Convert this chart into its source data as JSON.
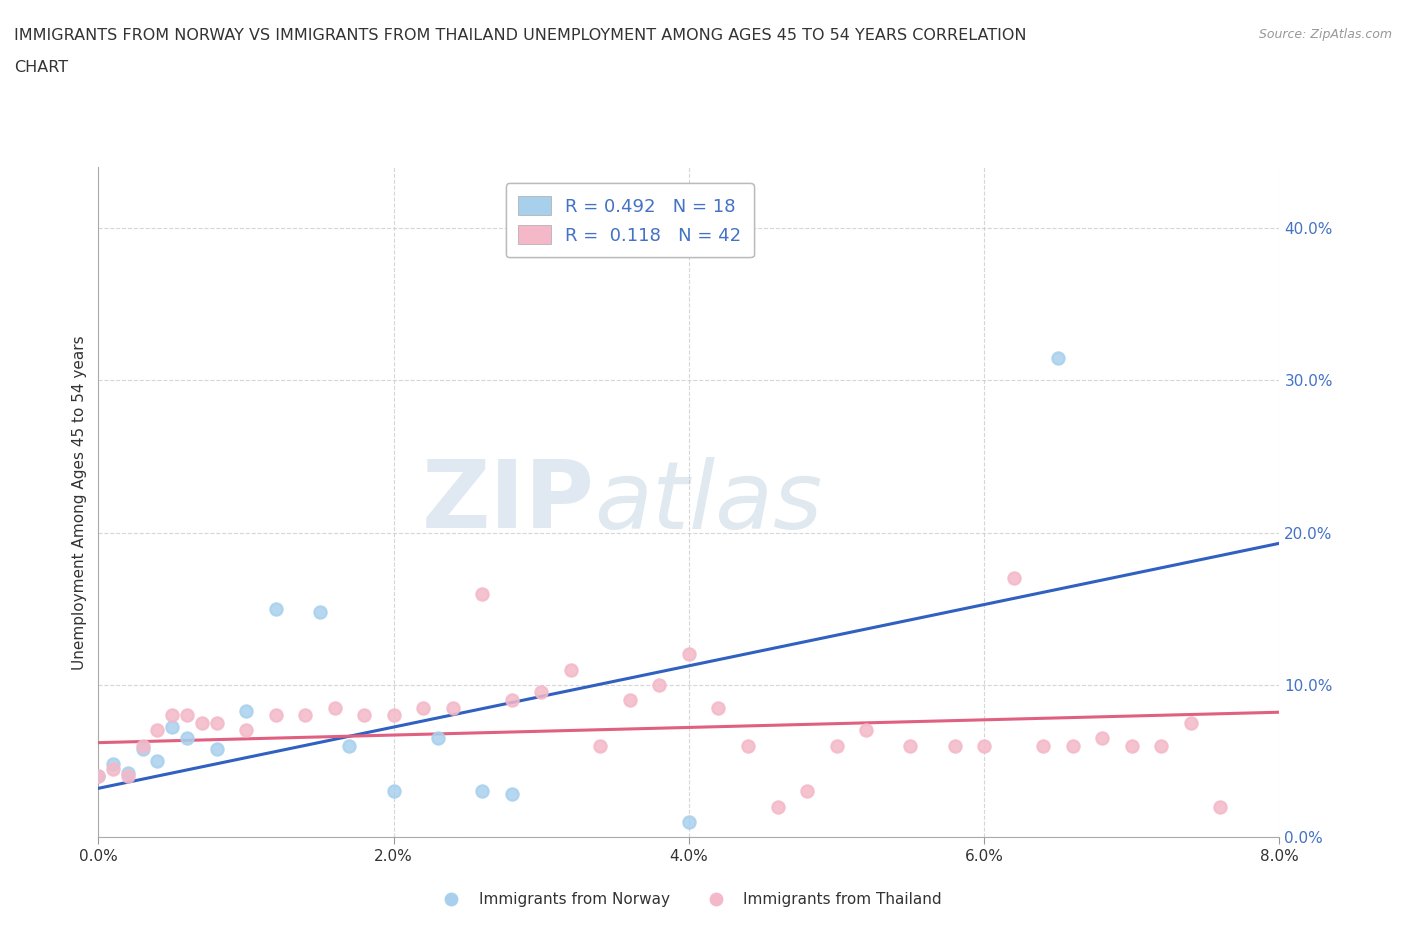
{
  "title_line1": "IMMIGRANTS FROM NORWAY VS IMMIGRANTS FROM THAILAND UNEMPLOYMENT AMONG AGES 45 TO 54 YEARS CORRELATION",
  "title_line2": "CHART",
  "source_text": "Source: ZipAtlas.com",
  "ylabel": "Unemployment Among Ages 45 to 54 years",
  "xlim": [
    0.0,
    0.08
  ],
  "ylim": [
    0.0,
    0.44
  ],
  "x_ticks": [
    0.0,
    0.02,
    0.04,
    0.06,
    0.08
  ],
  "x_tick_labels": [
    "0.0%",
    "2.0%",
    "4.0%",
    "6.0%",
    "8.0%"
  ],
  "y_ticks": [
    0.0,
    0.1,
    0.2,
    0.3,
    0.4
  ],
  "y_tick_labels": [
    "0.0%",
    "10.0%",
    "20.0%",
    "30.0%",
    "40.0%"
  ],
  "norway_color": "#A8D0ED",
  "thailand_color": "#F4B8C8",
  "norway_line_color": "#3060C0",
  "thailand_line_color": "#E06080",
  "norway_R": 0.492,
  "norway_N": 18,
  "thailand_R": 0.118,
  "thailand_N": 42,
  "norway_scatter_x": [
    0.0,
    0.001,
    0.002,
    0.003,
    0.004,
    0.005,
    0.006,
    0.008,
    0.01,
    0.012,
    0.015,
    0.017,
    0.02,
    0.023,
    0.026,
    0.028,
    0.065,
    0.04
  ],
  "norway_scatter_y": [
    0.04,
    0.048,
    0.042,
    0.058,
    0.05,
    0.072,
    0.065,
    0.058,
    0.083,
    0.15,
    0.148,
    0.06,
    0.03,
    0.065,
    0.03,
    0.028,
    0.315,
    0.01
  ],
  "thailand_scatter_x": [
    0.0,
    0.001,
    0.002,
    0.003,
    0.004,
    0.005,
    0.006,
    0.007,
    0.008,
    0.01,
    0.012,
    0.014,
    0.016,
    0.018,
    0.02,
    0.022,
    0.024,
    0.026,
    0.028,
    0.03,
    0.032,
    0.034,
    0.036,
    0.038,
    0.04,
    0.042,
    0.044,
    0.046,
    0.048,
    0.05,
    0.052,
    0.055,
    0.058,
    0.06,
    0.062,
    0.064,
    0.066,
    0.068,
    0.07,
    0.072,
    0.074,
    0.076
  ],
  "thailand_scatter_y": [
    0.04,
    0.045,
    0.04,
    0.06,
    0.07,
    0.08,
    0.08,
    0.075,
    0.075,
    0.07,
    0.08,
    0.08,
    0.085,
    0.08,
    0.08,
    0.085,
    0.085,
    0.16,
    0.09,
    0.095,
    0.11,
    0.06,
    0.09,
    0.1,
    0.12,
    0.085,
    0.06,
    0.02,
    0.03,
    0.06,
    0.07,
    0.06,
    0.06,
    0.06,
    0.17,
    0.06,
    0.06,
    0.065,
    0.06,
    0.06,
    0.075,
    0.02
  ],
  "norway_line_x": [
    0.0,
    0.08
  ],
  "norway_line_y": [
    0.032,
    0.193
  ],
  "thailand_line_x": [
    0.0,
    0.08
  ],
  "thailand_line_y": [
    0.062,
    0.082
  ],
  "watermark_zip": "ZIP",
  "watermark_atlas": "atlas",
  "background_color": "#ffffff",
  "grid_color": "#cccccc",
  "legend_label_norway": "Immigrants from Norway",
  "legend_label_thailand": "Immigrants from Thailand",
  "tick_label_color": "#4472C4",
  "text_color": "#333333"
}
